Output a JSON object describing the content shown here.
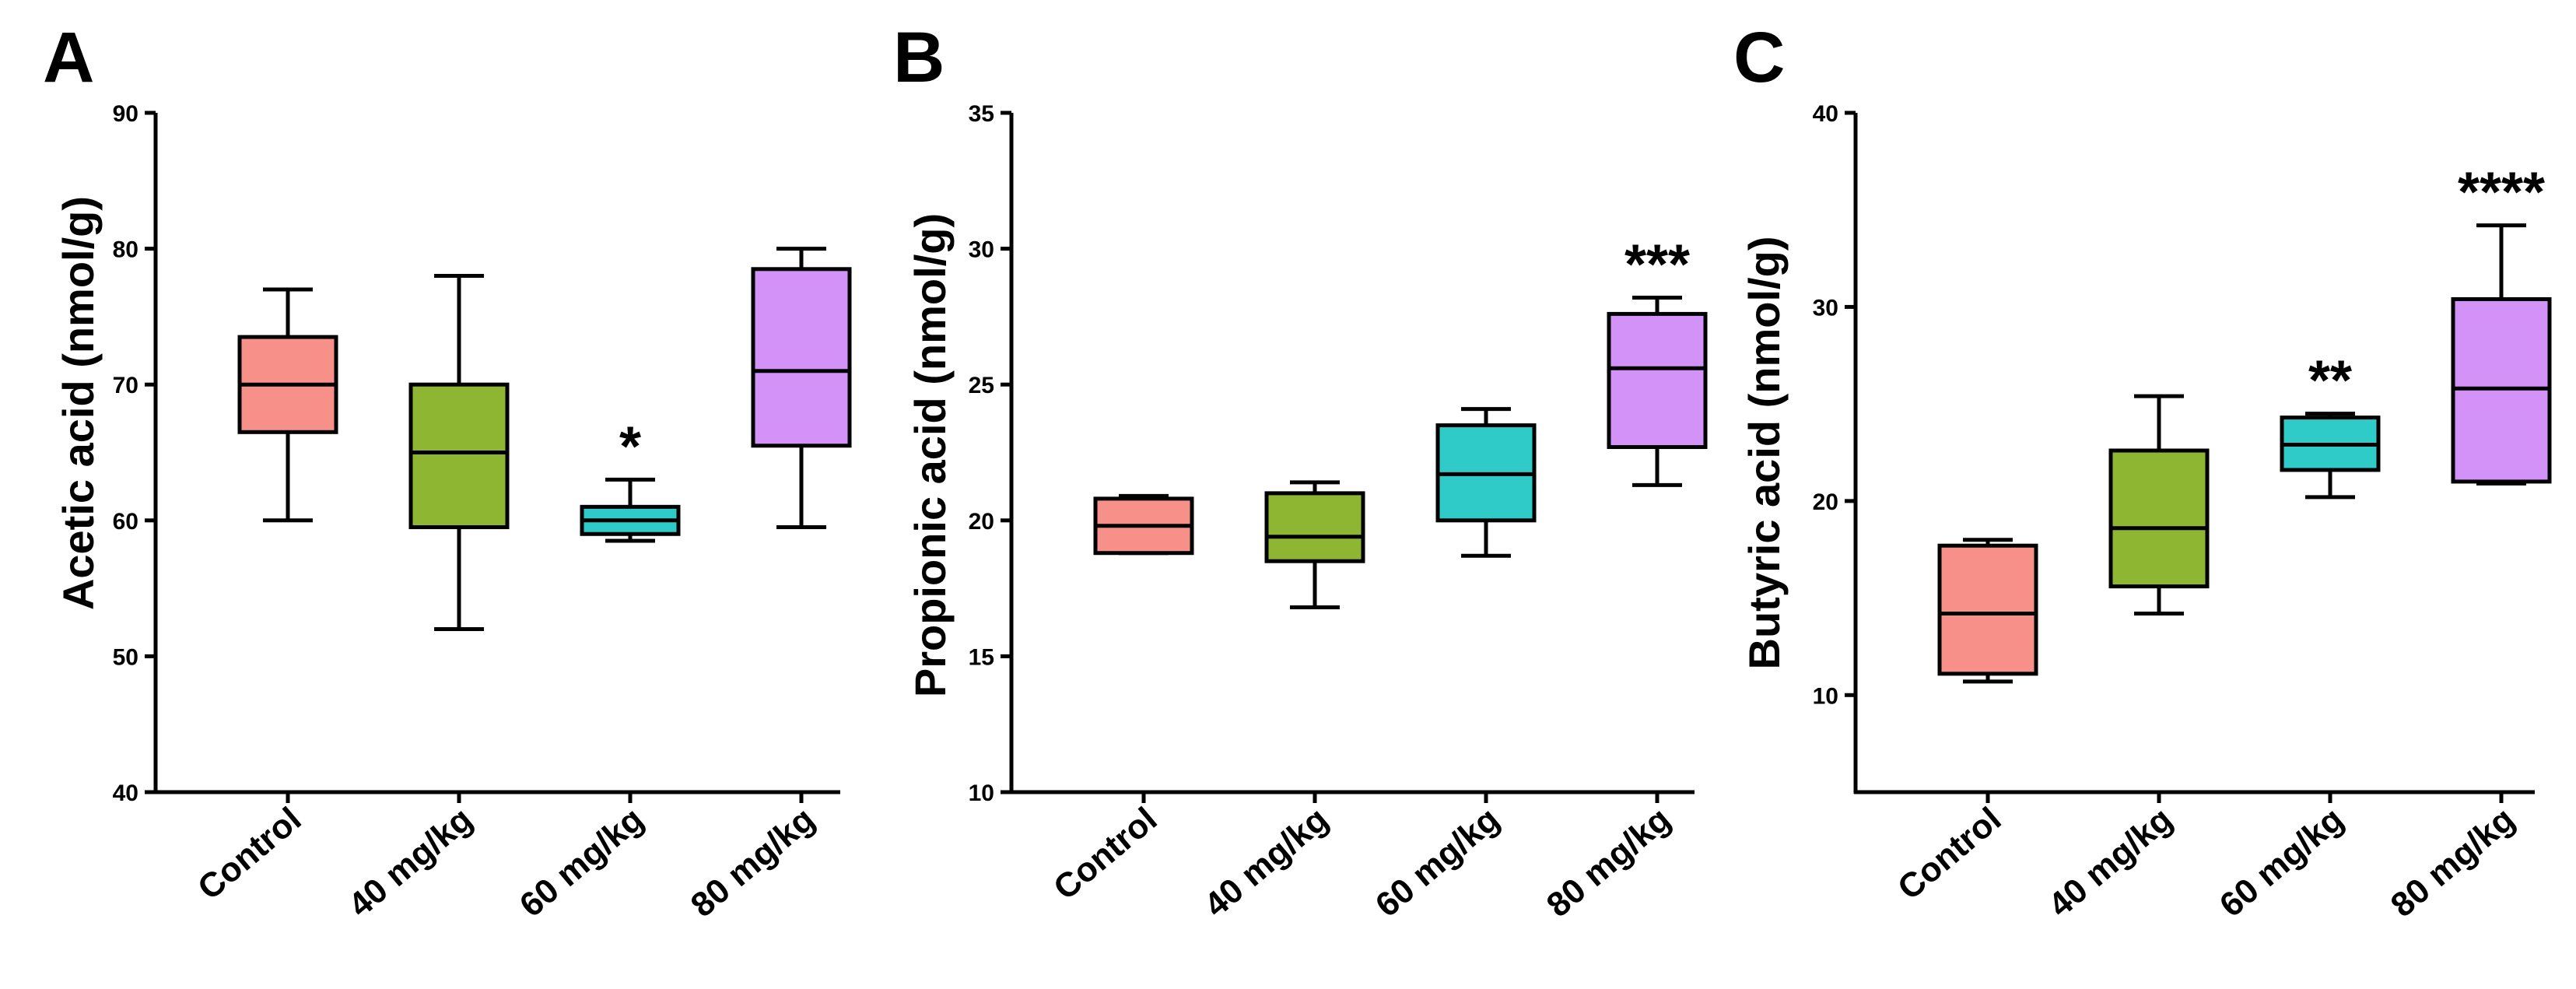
{
  "chart_data": [
    {
      "panel": "A",
      "type": "box",
      "ylabel": "Acetic acid (nmol/g)",
      "ylim": [
        40,
        90
      ],
      "yticks": [
        40,
        50,
        60,
        70,
        80,
        90
      ],
      "categories": [
        "Control",
        "40 mg/kg",
        "60 mg/kg",
        "80 mg/kg"
      ],
      "boxes": [
        {
          "min": 60,
          "q1": 66.5,
          "median": 70,
          "q3": 73.5,
          "max": 77
        },
        {
          "min": 52,
          "q1": 59.5,
          "median": 65,
          "q3": 70,
          "max": 78
        },
        {
          "min": 58.5,
          "q1": 59,
          "median": 60,
          "q3": 61,
          "max": 63
        },
        {
          "min": 59.5,
          "q1": 65.5,
          "median": 71,
          "q3": 78.5,
          "max": 80
        }
      ],
      "significance": [
        "",
        "",
        "*",
        ""
      ]
    },
    {
      "panel": "B",
      "type": "box",
      "ylabel": "Propionic acid (nmol/g)",
      "ylim": [
        10,
        35
      ],
      "yticks": [
        10,
        15,
        20,
        25,
        30,
        35
      ],
      "categories": [
        "Control",
        "40 mg/kg",
        "60 mg/kg",
        "80 mg/kg"
      ],
      "boxes": [
        {
          "min": 18.8,
          "q1": 18.8,
          "median": 19.8,
          "q3": 20.8,
          "max": 20.9
        },
        {
          "min": 16.8,
          "q1": 18.5,
          "median": 19.4,
          "q3": 21,
          "max": 21.4
        },
        {
          "min": 18.7,
          "q1": 20,
          "median": 21.7,
          "q3": 23.5,
          "max": 24.1
        },
        {
          "min": 21.3,
          "q1": 22.7,
          "median": 25.6,
          "q3": 27.6,
          "max": 28.2
        }
      ],
      "significance": [
        "",
        "",
        "",
        "***"
      ]
    },
    {
      "panel": "C",
      "type": "box",
      "ylabel": "Butyric acid (nmol/g)",
      "ylim": [
        5,
        40
      ],
      "yticks": [
        10,
        20,
        30,
        40
      ],
      "categories": [
        "Control",
        "40 mg/kg",
        "60 mg/kg",
        "80 mg/kg"
      ],
      "boxes": [
        {
          "min": 10.7,
          "q1": 11.1,
          "median": 14.2,
          "q3": 17.7,
          "max": 18
        },
        {
          "min": 14.2,
          "q1": 15.6,
          "median": 18.6,
          "q3": 22.6,
          "max": 25.4
        },
        {
          "min": 20.2,
          "q1": 21.6,
          "median": 22.9,
          "q3": 24.3,
          "max": 24.5
        },
        {
          "min": 20.9,
          "q1": 21,
          "median": 25.8,
          "q3": 30.4,
          "max": 34.2
        }
      ],
      "significance": [
        "",
        "",
        "**",
        "****"
      ]
    }
  ],
  "colors": {
    "Control": "#f8908a",
    "40 mg/kg": "#8fb633",
    "60 mg/kg": "#2ecbc9",
    "80 mg/kg": "#d292f8",
    "stroke": "#000000"
  }
}
